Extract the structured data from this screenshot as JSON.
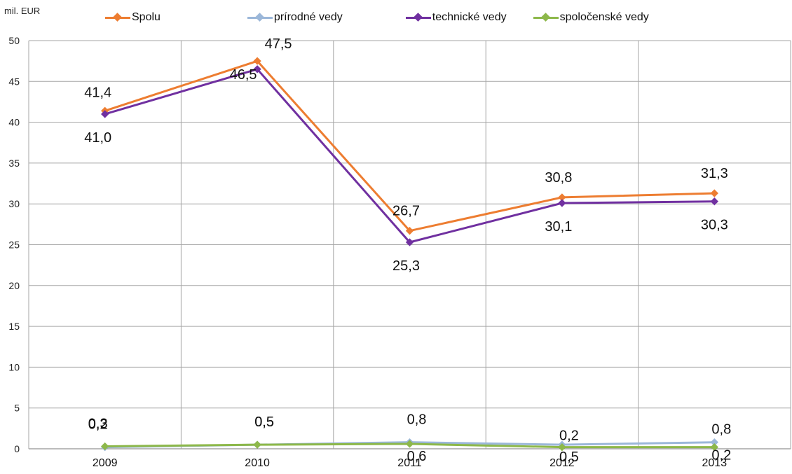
{
  "chart_data": {
    "type": "line",
    "unit_label": "mil. EUR",
    "categories": [
      "2009",
      "2010",
      "2011",
      "2012",
      "2013"
    ],
    "ylim": [
      0,
      50
    ],
    "yticks": [
      0,
      5,
      10,
      15,
      20,
      25,
      30,
      35,
      40,
      45,
      50
    ],
    "grid": true,
    "legend_position": "top",
    "series": [
      {
        "name": "Spolu",
        "color": "#ED7D31",
        "values": [
          41.4,
          47.5,
          26.7,
          30.8,
          31.3
        ],
        "labels": [
          "41,4",
          "47,5",
          "26,7",
          "30,8",
          "31,3"
        ],
        "label_pos": "above"
      },
      {
        "name": "prírodné vedy",
        "color": "#9BB7D9",
        "values": [
          0.2,
          0.5,
          0.8,
          0.5,
          0.8
        ],
        "labels": [
          "0,2",
          "0,5",
          "0,8",
          "0,5",
          "0,8"
        ],
        "label_pos": "mixed"
      },
      {
        "name": "technické vedy",
        "color": "#7030A0",
        "values": [
          41.0,
          46.5,
          25.3,
          30.1,
          30.3
        ],
        "labels": [
          "41,0",
          "46,5",
          "25,3",
          "30,1",
          "30,3"
        ],
        "label_pos": "below"
      },
      {
        "name": "spoločenské vedy",
        "color": "#8DB84A",
        "values": [
          0.3,
          0.5,
          0.6,
          0.2,
          0.2
        ],
        "labels": [
          "0,3",
          "0,5",
          "0,6",
          "0,2",
          "0,2"
        ],
        "label_pos": "mixed"
      }
    ]
  }
}
